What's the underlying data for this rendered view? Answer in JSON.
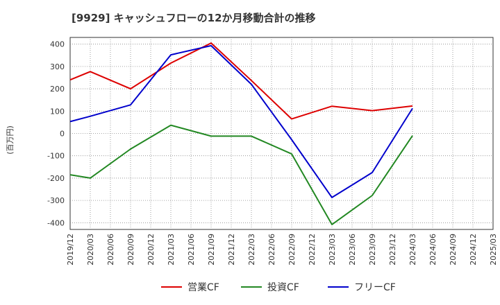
{
  "chart_data": {
    "type": "line",
    "title": "[9929]  キャッシュフローの12か月移動合計の推移",
    "ylabel": "(百万円)",
    "xlabel": "",
    "ylim": [
      -430,
      430
    ],
    "yticks": [
      400,
      300,
      200,
      100,
      0,
      -100,
      -200,
      -300,
      -400
    ],
    "categories": [
      "2019/12",
      "2020/03",
      "2020/06",
      "2020/09",
      "2020/12",
      "2021/03",
      "2021/06",
      "2021/09",
      "2021/12",
      "2022/03",
      "2022/06",
      "2022/09",
      "2022/12",
      "2023/03",
      "2023/06",
      "2023/09",
      "2023/12",
      "2024/03",
      "2024/06",
      "2024/09",
      "2024/12",
      "2025/03"
    ],
    "grid": true,
    "legend_position": "bottom",
    "series": [
      {
        "name": "営業CF",
        "color": "#dd0000",
        "values": [
          240,
          277,
          null,
          200,
          null,
          315,
          null,
          405,
          null,
          237,
          null,
          65,
          null,
          122,
          null,
          102,
          null,
          123,
          null,
          null,
          null,
          null
        ]
      },
      {
        "name": "投資CF",
        "color": "#228822",
        "values": [
          -185,
          -200,
          null,
          -70,
          null,
          37,
          null,
          -12,
          null,
          -12,
          null,
          -92,
          null,
          -408,
          null,
          -278,
          null,
          -10,
          null,
          null,
          null,
          null
        ]
      },
      {
        "name": "フリーCF",
        "color": "#0000cc",
        "values": [
          53,
          77,
          null,
          128,
          null,
          352,
          null,
          393,
          null,
          220,
          null,
          -28,
          null,
          -287,
          null,
          -175,
          null,
          112,
          null,
          null,
          null,
          null
        ]
      }
    ]
  }
}
